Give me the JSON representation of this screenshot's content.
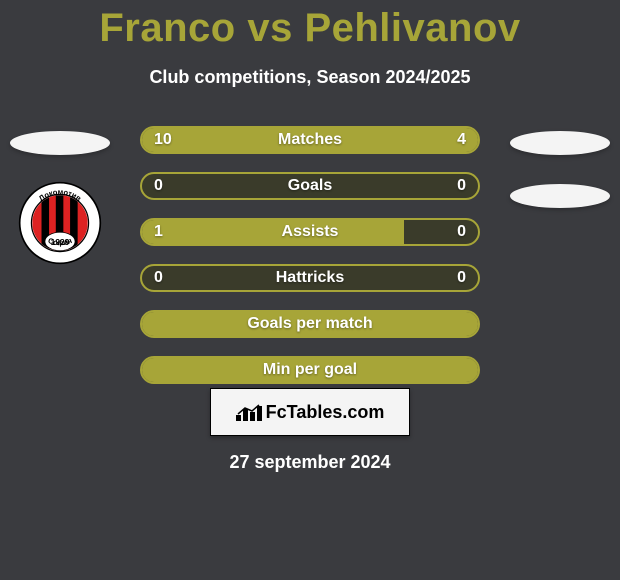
{
  "title": "Franco vs Pehlivanov",
  "title_color": "#a7a538",
  "subtitle": "Club competitions, Season 2024/2025",
  "date": "27 september 2024",
  "background_color": "#3a3b3f",
  "bar_scheme": {
    "border_color": "#a7a538",
    "track_color": "#3a3b2a",
    "left_fill_color": "#a7a538",
    "right_fill_color": "#a7a538",
    "label_color": "#ffffff"
  },
  "rows": [
    {
      "label": "Matches",
      "left": "10",
      "right": "4",
      "left_pct": 71,
      "right_pct": 29
    },
    {
      "label": "Goals",
      "left": "0",
      "right": "0",
      "left_pct": 0,
      "right_pct": 0
    },
    {
      "label": "Assists",
      "left": "1",
      "right": "0",
      "left_pct": 78,
      "right_pct": 0
    },
    {
      "label": "Hattricks",
      "left": "0",
      "right": "0",
      "left_pct": 0,
      "right_pct": 0
    },
    {
      "label": "Goals per match",
      "left": "",
      "right": "",
      "left_pct": 100,
      "right_pct": 0,
      "full": true
    },
    {
      "label": "Min per goal",
      "left": "",
      "right": "",
      "left_pct": 100,
      "right_pct": 0,
      "full": true
    }
  ],
  "brand": {
    "text_prefix": "Fc",
    "text_suffix": "Tables.com"
  },
  "club_badge": {
    "name": "lokomotiv-sofia-badge",
    "ring_color": "#ffffff",
    "ring_stroke": "#000000",
    "inner_text_top": "Локомотив",
    "inner_text_bottom": "София",
    "year": "1929",
    "stripe_colors": [
      "#d22",
      "#000"
    ]
  }
}
